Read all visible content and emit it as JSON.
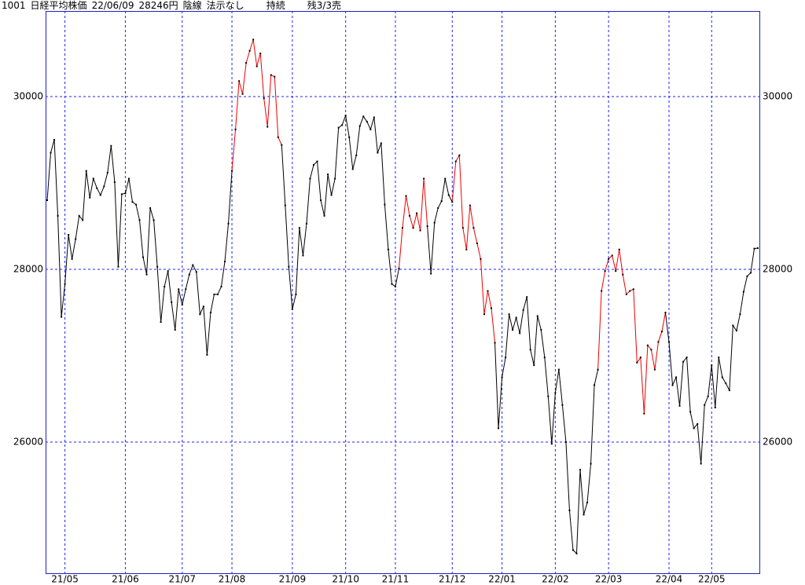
{
  "header": {
    "code": "1001",
    "name": "日経平均株価",
    "date": "22/06/09",
    "price": "28246円",
    "candle": "陰線",
    "signal": "法示なし",
    "status": "持続",
    "position": "残3/3売"
  },
  "chart_data": {
    "type": "line",
    "categories": [
      null,
      null,
      null,
      null,
      null,
      "21/05",
      null,
      null,
      null,
      null,
      null,
      null,
      null,
      null,
      null,
      null,
      null,
      null,
      null,
      null,
      null,
      null,
      "21/06",
      null,
      null,
      null,
      null,
      null,
      null,
      null,
      null,
      null,
      null,
      null,
      null,
      null,
      null,
      null,
      "21/07",
      null,
      null,
      null,
      null,
      null,
      null,
      null,
      null,
      null,
      null,
      null,
      null,
      null,
      "21/08",
      null,
      null,
      null,
      null,
      null,
      null,
      null,
      null,
      null,
      null,
      null,
      null,
      null,
      null,
      null,
      null,
      "21/09",
      null,
      null,
      null,
      null,
      null,
      null,
      null,
      null,
      null,
      null,
      null,
      null,
      null,
      null,
      "21/10",
      null,
      null,
      null,
      null,
      null,
      null,
      null,
      null,
      null,
      null,
      null,
      null,
      null,
      "21/11",
      null,
      null,
      null,
      null,
      null,
      null,
      null,
      null,
      null,
      null,
      null,
      null,
      null,
      null,
      null,
      "21/12",
      null,
      null,
      null,
      null,
      null,
      null,
      null,
      null,
      null,
      null,
      null,
      null,
      null,
      "22/01",
      null,
      null,
      null,
      null,
      null,
      null,
      null,
      null,
      null,
      null,
      null,
      null,
      null,
      null,
      "22/02",
      null,
      null,
      null,
      null,
      null,
      null,
      null,
      null,
      null,
      null,
      null,
      null,
      null,
      null,
      "22/03",
      null,
      null,
      null,
      null,
      null,
      null,
      null,
      null,
      null,
      null,
      null,
      null,
      null,
      null,
      null,
      null,
      "22/04",
      null,
      null,
      null,
      null,
      null,
      null,
      null,
      null,
      null,
      null,
      null,
      "22/05",
      null,
      null,
      null,
      null,
      null,
      null,
      null,
      null,
      null,
      null,
      null,
      null,
      null
    ],
    "values": [
      28800,
      29350,
      29500,
      28620,
      27450,
      27830,
      28400,
      28120,
      28350,
      28620,
      28570,
      29140,
      28830,
      29050,
      28940,
      28860,
      28960,
      29120,
      29430,
      29010,
      28030,
      28870,
      28880,
      29050,
      28780,
      28750,
      28570,
      28140,
      27940,
      28710,
      28570,
      28030,
      27390,
      27800,
      27980,
      27620,
      27300,
      27770,
      27590,
      27770,
      27940,
      28050,
      27970,
      27480,
      27570,
      27010,
      27500,
      27710,
      27710,
      27800,
      28090,
      28530,
      29140,
      29620,
      30180,
      30030,
      30390,
      30530,
      30660,
      30350,
      30500,
      29980,
      29650,
      30250,
      30230,
      29530,
      29440,
      28740,
      28030,
      27540,
      27710,
      28480,
      28160,
      28530,
      29050,
      29210,
      29250,
      28800,
      28620,
      29100,
      28860,
      29050,
      29640,
      29670,
      29780,
      29530,
      29160,
      29320,
      29660,
      29770,
      29710,
      29620,
      29760,
      29350,
      29460,
      28750,
      28230,
      27830,
      27800,
      28010,
      28480,
      28850,
      28620,
      28480,
      28650,
      28450,
      29050,
      28500,
      27950,
      28540,
      28710,
      28790,
      29050,
      28860,
      28780,
      29250,
      29320,
      28480,
      28230,
      28740,
      28480,
      28300,
      28120,
      27480,
      27750,
      27550,
      27150,
      26160,
      26750,
      26980,
      27480,
      27300,
      27440,
      27260,
      27530,
      27680,
      27070,
      26890,
      27460,
      27300,
      26980,
      26530,
      25980,
      26570,
      26840,
      26430,
      26000,
      25210,
      24750,
      24710,
      25680,
      25160,
      25300,
      25750,
      26660,
      26840,
      27750,
      27980,
      28120,
      28160,
      27980,
      28230,
      27940,
      27710,
      27750,
      27770,
      26920,
      26980,
      26330,
      27120,
      27070,
      26840,
      27160,
      27280,
      27500,
      27160,
      26660,
      26750,
      26420,
      26930,
      26980,
      26350,
      26160,
      26210,
      25750,
      26430,
      26530,
      26890,
      26400,
      26980,
      26750,
      26680,
      26600,
      27350,
      27290,
      27480,
      27740,
      27920,
      27960,
      28240,
      28246
    ],
    "colors": [
      "#000",
      "#000",
      "#000",
      "#000",
      "#000",
      "#000",
      "#000",
      "#000",
      "#000",
      "#000",
      "#000",
      "#000",
      "#000",
      "#000",
      "#000",
      "#000",
      "#000",
      "#000",
      "#000",
      "#000",
      "#000",
      "#000",
      "#000",
      "#000",
      "#000",
      "#000",
      "#000",
      "#000",
      "#000",
      "#000",
      "#000",
      "#000",
      "#000",
      "#000",
      "#000",
      "#000",
      "#000",
      "#000",
      "#000",
      "#000",
      "#000",
      "#000",
      "#000",
      "#000",
      "#000",
      "#000",
      "#000",
      "#000",
      "#000",
      "#000",
      "#000",
      "#000",
      "#000",
      "#e00",
      "#e00",
      "#e00",
      "#e00",
      "#e00",
      "#e00",
      "#e00",
      "#e00",
      "#e00",
      "#e00",
      "#e00",
      "#e00",
      "#e00",
      "#e00",
      "#000",
      "#000",
      "#000",
      "#000",
      "#000",
      "#000",
      "#000",
      "#000",
      "#000",
      "#000",
      "#000",
      "#000",
      "#000",
      "#000",
      "#000",
      "#000",
      "#000",
      "#000",
      "#000",
      "#000",
      "#000",
      "#000",
      "#000",
      "#000",
      "#000",
      "#000",
      "#000",
      "#000",
      "#000",
      "#000",
      "#000",
      "#000",
      "#000",
      "#e00",
      "#e00",
      "#e00",
      "#e00",
      "#e00",
      "#e00",
      "#e00",
      "#e00",
      "#000",
      "#000",
      "#000",
      "#000",
      "#000",
      "#000",
      "#000",
      "#e00",
      "#e00",
      "#e00",
      "#e00",
      "#e00",
      "#e00",
      "#e00",
      "#e00",
      "#e00",
      "#e00",
      "#e00",
      "#e00",
      "#000",
      "#000",
      "#000",
      "#000",
      "#000",
      "#000",
      "#000",
      "#000",
      "#000",
      "#000",
      "#000",
      "#000",
      "#000",
      "#000",
      "#000",
      "#000",
      "#000",
      "#000",
      "#000",
      "#000",
      "#000",
      "#000",
      "#000",
      "#000",
      "#000",
      "#000",
      "#000",
      "#000",
      "#000",
      "#e00",
      "#e00",
      "#e00",
      "#e00",
      "#e00",
      "#e00",
      "#e00",
      "#e00",
      "#e00",
      "#e00",
      "#e00",
      "#e00",
      "#e00",
      "#e00",
      "#e00",
      "#e00",
      "#e00",
      "#e00",
      "#e00",
      "#000",
      "#000",
      "#000",
      "#000",
      "#000",
      "#000",
      "#000",
      "#000",
      "#000",
      "#000",
      "#000",
      "#000",
      "#000",
      "#000",
      "#000",
      "#000",
      "#000",
      "#000",
      "#000",
      "#000",
      "#000",
      "#000",
      "#000",
      "#000",
      "#000",
      "#000"
    ],
    "ylim": [
      24482,
      30991
    ],
    "yticks": [
      26000,
      28000,
      30000
    ],
    "grid": true
  }
}
